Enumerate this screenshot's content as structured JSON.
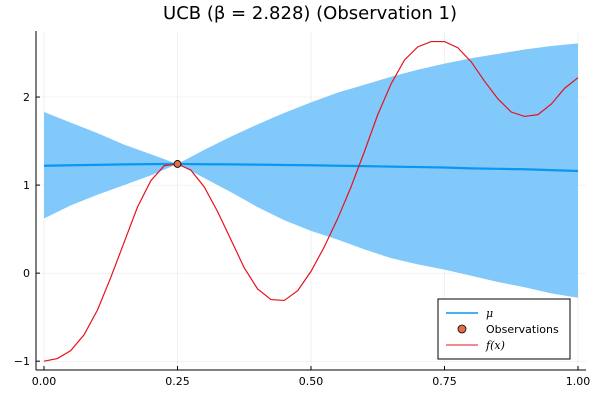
{
  "chart_data": {
    "type": "line",
    "title": "UCB (β = 2.828) (Observation 1)",
    "xlabel": "",
    "ylabel": "",
    "xlim": [
      -0.015,
      1.015
    ],
    "ylim": [
      -1.1,
      2.75
    ],
    "x_ticks": [
      0.0,
      0.25,
      0.5,
      0.75,
      1.0
    ],
    "x_tick_labels": [
      "0.00",
      "0.25",
      "0.50",
      "0.75",
      "1.00"
    ],
    "y_ticks": [
      -1,
      0,
      1,
      2
    ],
    "y_tick_labels": [
      "−1",
      "0",
      "1",
      "2"
    ],
    "grid": true,
    "legend_position": "bottom-right",
    "colors": {
      "band": "#80c9fa",
      "mu": "#0b96f2",
      "f": "#e8101d",
      "observation": "#e26f46"
    },
    "band": {
      "name": "confidence band",
      "x": [
        0.0,
        0.05,
        0.1,
        0.15,
        0.2,
        0.25,
        0.3,
        0.35,
        0.4,
        0.45,
        0.5,
        0.55,
        0.6,
        0.65,
        0.7,
        0.75,
        0.8,
        0.85,
        0.9,
        0.95,
        1.0
      ],
      "upper": [
        1.83,
        1.71,
        1.59,
        1.46,
        1.35,
        1.24,
        1.4,
        1.55,
        1.69,
        1.82,
        1.94,
        2.05,
        2.14,
        2.23,
        2.31,
        2.38,
        2.44,
        2.49,
        2.54,
        2.58,
        2.61
      ],
      "lower": [
        0.62,
        0.77,
        0.89,
        1.0,
        1.11,
        1.24,
        1.08,
        0.92,
        0.75,
        0.6,
        0.48,
        0.38,
        0.27,
        0.17,
        0.1,
        0.04,
        -0.03,
        -0.1,
        -0.16,
        -0.23,
        -0.28
      ]
    },
    "series": [
      {
        "name": "μ",
        "x": [
          0.0,
          0.05,
          0.1,
          0.15,
          0.2,
          0.25,
          0.3,
          0.35,
          0.4,
          0.45,
          0.5,
          0.55,
          0.6,
          0.65,
          0.7,
          0.75,
          0.8,
          0.85,
          0.9,
          0.95,
          1.0
        ],
        "y": [
          1.22,
          1.225,
          1.23,
          1.235,
          1.238,
          1.24,
          1.237,
          1.235,
          1.232,
          1.228,
          1.225,
          1.22,
          1.215,
          1.21,
          1.205,
          1.2,
          1.19,
          1.185,
          1.18,
          1.17,
          1.16
        ]
      },
      {
        "name": "f(x)",
        "x": [
          0.0,
          0.025,
          0.05,
          0.075,
          0.1,
          0.125,
          0.15,
          0.175,
          0.2,
          0.225,
          0.25,
          0.275,
          0.3,
          0.325,
          0.35,
          0.375,
          0.4,
          0.425,
          0.45,
          0.475,
          0.5,
          0.525,
          0.55,
          0.575,
          0.6,
          0.625,
          0.65,
          0.675,
          0.7,
          0.725,
          0.75,
          0.775,
          0.8,
          0.825,
          0.85,
          0.875,
          0.9,
          0.925,
          0.95,
          0.975,
          1.0
        ],
        "y": [
          -1.0,
          -0.97,
          -0.88,
          -0.7,
          -0.42,
          -0.05,
          0.35,
          0.75,
          1.05,
          1.22,
          1.24,
          1.17,
          0.98,
          0.7,
          0.38,
          0.06,
          -0.18,
          -0.3,
          -0.31,
          -0.2,
          0.02,
          0.3,
          0.62,
          0.98,
          1.38,
          1.8,
          2.15,
          2.42,
          2.57,
          2.63,
          2.63,
          2.56,
          2.4,
          2.18,
          1.98,
          1.83,
          1.78,
          1.8,
          1.92,
          2.1,
          2.22
        ]
      }
    ],
    "observations": {
      "name": "Observations",
      "x": [
        0.25
      ],
      "y": [
        1.24
      ]
    },
    "legend": {
      "mu_label": "μ",
      "observations_label": "Observations",
      "f_label": "f(x)"
    }
  }
}
